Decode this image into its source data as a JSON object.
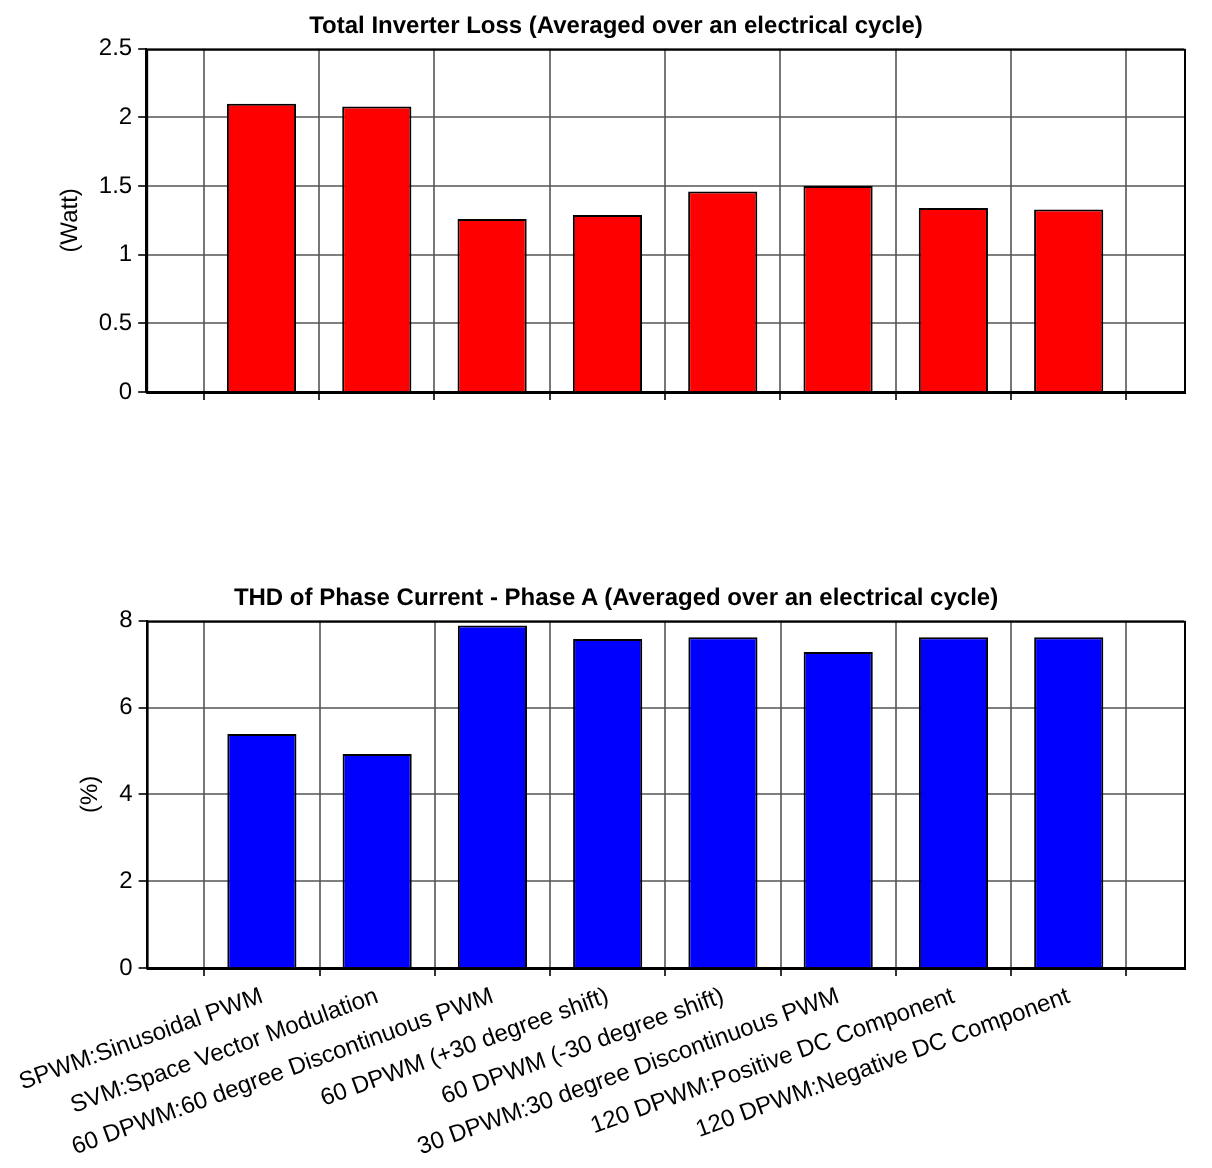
{
  "chart_data": [
    {
      "type": "bar",
      "title": "Total Inverter Loss (Averaged over an electrical cycle)",
      "ylabel": "(Watt)",
      "categories": [
        null,
        null,
        null,
        null,
        null,
        null,
        null,
        null
      ],
      "values": [
        2.1,
        2.08,
        1.26,
        1.29,
        1.46,
        1.5,
        1.34,
        1.33
      ],
      "color": "#ff0000",
      "ylim": [
        0,
        2.5
      ],
      "yticks": [
        0,
        0.5,
        1,
        1.5,
        2,
        2.5
      ],
      "grid": true,
      "tick_labels": "y"
    },
    {
      "type": "bar",
      "title": "THD of Phase Current - Phase A (Averaged over an electrical cycle)",
      "ylabel": "(%)",
      "categories": [
        "SPWM:Sinusoidal PWM",
        "SVM:Space Vector Modulation",
        "60 DPWM:60 degree Discontinuous PWM",
        "60 DPWM (+30 degree shift)",
        "60 DPWM (-30 degree shift)",
        "30 DPWM:30 degree Discontinuous PWM",
        "120 DPWM:Positive DC Component",
        "120 DPWM:Negative DC Component"
      ],
      "values": [
        5.39,
        4.93,
        7.89,
        7.58,
        7.62,
        7.28,
        7.62,
        7.62
      ],
      "color": "#0000ff",
      "ylim": [
        0,
        8
      ],
      "yticks": [
        0,
        2,
        4,
        6,
        8
      ],
      "grid": true
    }
  ]
}
